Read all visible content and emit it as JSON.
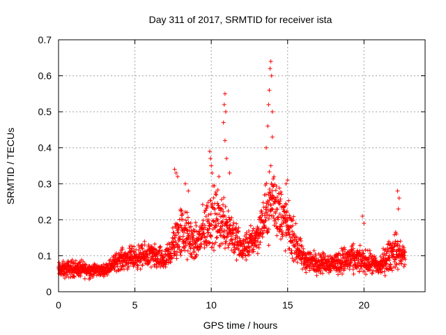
{
  "chart_data": {
    "type": "scatter",
    "title": "Day 311 of 2017, SRMTID for receiver ista",
    "xlabel": "GPS time / hours",
    "ylabel": "SRMTID / TECUs",
    "xlim": [
      0,
      24
    ],
    "ylim": [
      0,
      0.7
    ],
    "xticks": [
      0,
      5,
      10,
      15,
      20
    ],
    "xtick_labels": [
      "0",
      "5",
      "10",
      "15",
      "20"
    ],
    "yticks": [
      0,
      0.1,
      0.2,
      0.3,
      0.4,
      0.5,
      0.6,
      0.7
    ],
    "ytick_labels": [
      "0",
      "0.1",
      "0.2",
      "0.3",
      "0.4",
      "0.5",
      "0.6",
      "0.7"
    ],
    "grid": true,
    "marker": "+",
    "marker_color": "#ff0000",
    "x_end": 22.7,
    "envelope": [
      {
        "x": 0.0,
        "low": 0.03,
        "high": 0.09
      },
      {
        "x": 1.0,
        "low": 0.03,
        "high": 0.1
      },
      {
        "x": 2.0,
        "low": 0.03,
        "high": 0.09
      },
      {
        "x": 3.0,
        "low": 0.04,
        "high": 0.08
      },
      {
        "x": 4.0,
        "low": 0.05,
        "high": 0.13
      },
      {
        "x": 5.0,
        "low": 0.05,
        "high": 0.14
      },
      {
        "x": 6.0,
        "low": 0.05,
        "high": 0.15
      },
      {
        "x": 7.0,
        "low": 0.04,
        "high": 0.13
      },
      {
        "x": 8.0,
        "low": 0.06,
        "high": 0.28
      },
      {
        "x": 9.0,
        "low": 0.06,
        "high": 0.2
      },
      {
        "x": 10.0,
        "low": 0.08,
        "high": 0.33
      },
      {
        "x": 11.0,
        "low": 0.08,
        "high": 0.3
      },
      {
        "x": 12.0,
        "low": 0.06,
        "high": 0.17
      },
      {
        "x": 13.0,
        "low": 0.09,
        "high": 0.22
      },
      {
        "x": 14.0,
        "low": 0.12,
        "high": 0.4
      },
      {
        "x": 15.0,
        "low": 0.08,
        "high": 0.28
      },
      {
        "x": 16.0,
        "low": 0.04,
        "high": 0.14
      },
      {
        "x": 17.0,
        "low": 0.04,
        "high": 0.12
      },
      {
        "x": 18.0,
        "low": 0.04,
        "high": 0.12
      },
      {
        "x": 19.0,
        "low": 0.03,
        "high": 0.15
      },
      {
        "x": 20.0,
        "low": 0.04,
        "high": 0.13
      },
      {
        "x": 21.0,
        "low": 0.03,
        "high": 0.11
      },
      {
        "x": 22.0,
        "low": 0.04,
        "high": 0.19
      },
      {
        "x": 22.7,
        "low": 0.05,
        "high": 0.14
      }
    ],
    "peak_points": [
      {
        "x": 7.6,
        "y": 0.34
      },
      {
        "x": 7.7,
        "y": 0.33
      },
      {
        "x": 7.8,
        "y": 0.32
      },
      {
        "x": 8.3,
        "y": 0.3
      },
      {
        "x": 8.5,
        "y": 0.28
      },
      {
        "x": 9.9,
        "y": 0.39
      },
      {
        "x": 9.95,
        "y": 0.37
      },
      {
        "x": 10.0,
        "y": 0.35
      },
      {
        "x": 10.05,
        "y": 0.33
      },
      {
        "x": 10.5,
        "y": 0.32
      },
      {
        "x": 10.8,
        "y": 0.47
      },
      {
        "x": 10.85,
        "y": 0.52
      },
      {
        "x": 10.9,
        "y": 0.55
      },
      {
        "x": 10.95,
        "y": 0.5
      },
      {
        "x": 10.9,
        "y": 0.42
      },
      {
        "x": 11.0,
        "y": 0.37
      },
      {
        "x": 11.2,
        "y": 0.33
      },
      {
        "x": 13.6,
        "y": 0.4
      },
      {
        "x": 13.7,
        "y": 0.46
      },
      {
        "x": 13.75,
        "y": 0.52
      },
      {
        "x": 13.8,
        "y": 0.56
      },
      {
        "x": 13.85,
        "y": 0.62
      },
      {
        "x": 13.9,
        "y": 0.64
      },
      {
        "x": 13.95,
        "y": 0.6
      },
      {
        "x": 14.0,
        "y": 0.5
      },
      {
        "x": 14.0,
        "y": 0.43
      },
      {
        "x": 13.9,
        "y": 0.35
      },
      {
        "x": 15.0,
        "y": 0.31
      },
      {
        "x": 14.9,
        "y": 0.3
      },
      {
        "x": 19.9,
        "y": 0.21
      },
      {
        "x": 20.0,
        "y": 0.19
      },
      {
        "x": 22.2,
        "y": 0.28
      },
      {
        "x": 22.3,
        "y": 0.26
      },
      {
        "x": 22.25,
        "y": 0.23
      }
    ]
  }
}
